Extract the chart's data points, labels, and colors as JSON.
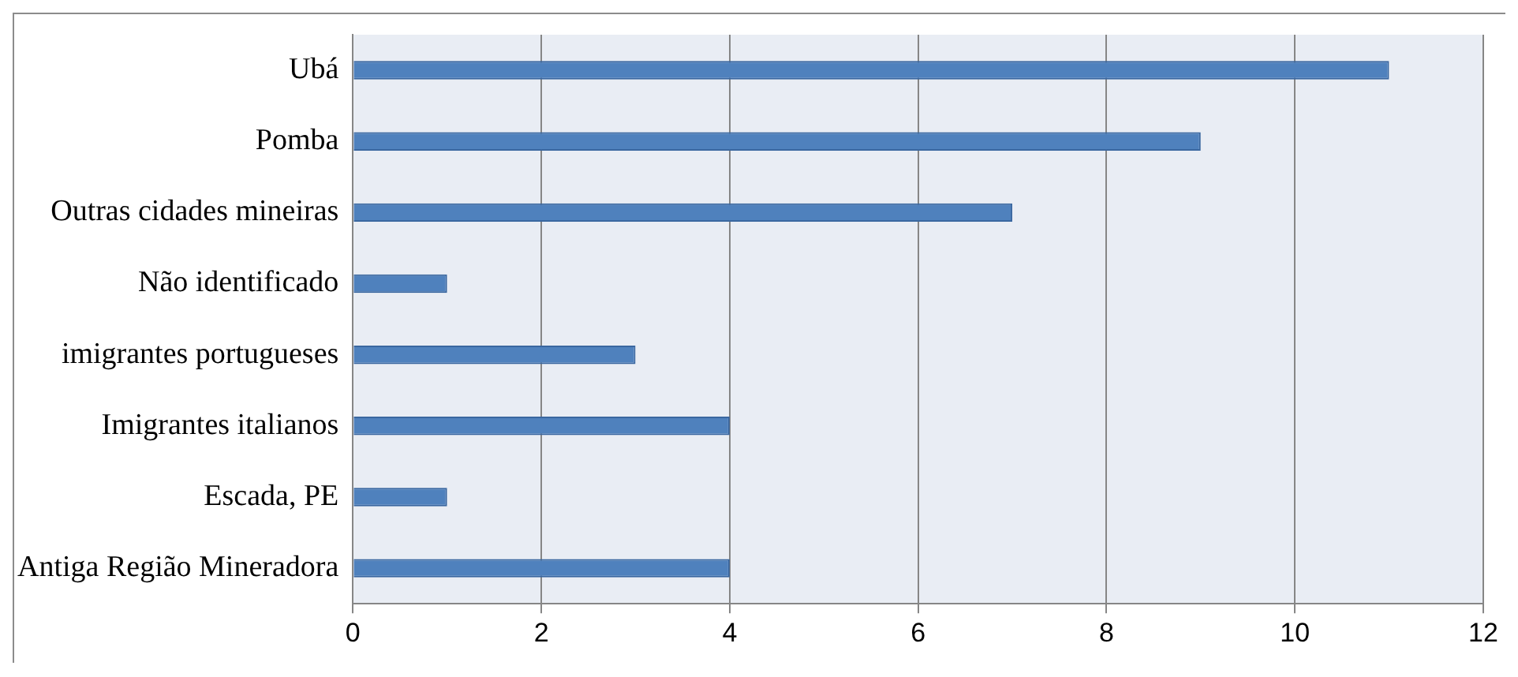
{
  "chart_data": {
    "type": "bar",
    "orientation": "horizontal",
    "categories": [
      "Ubá",
      "Pomba",
      "Outras cidades mineiras",
      "Não identificado",
      "imigrantes portugueses",
      "Imigrantes italianos",
      "Escada, PE",
      "Antiga Região Mineradora"
    ],
    "values": [
      11,
      9,
      7,
      1,
      3,
      4,
      1,
      4
    ],
    "color": "#4f81bd",
    "xlim": [
      0,
      12
    ],
    "xticks": [
      0,
      2,
      4,
      6,
      8,
      10,
      12
    ],
    "grid": "x",
    "legend": false
  }
}
